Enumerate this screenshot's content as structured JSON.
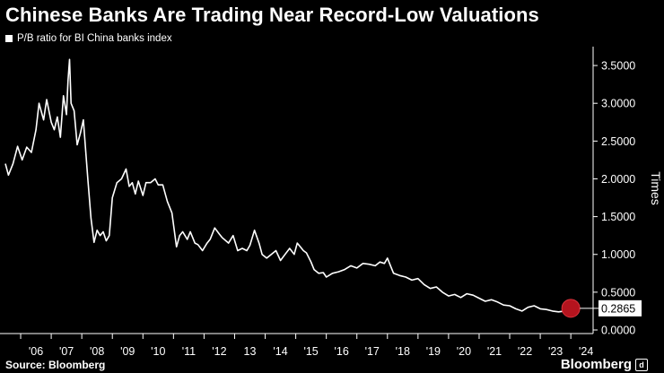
{
  "header": {
    "title": "Chinese Banks Are Trading Near Record-Low Valuations"
  },
  "footer": {
    "source": "Source: Bloomberg",
    "brand": "Bloomberg"
  },
  "colors": {
    "background": "#000000",
    "line": "#ffffff",
    "highlight": "#b4141e"
  },
  "chart_data": {
    "type": "line",
    "title": "Chinese Banks Are Trading Near Record-Low Valuations",
    "xlabel": "",
    "ylabel": "Times",
    "ylim": [
      0,
      3.75
    ],
    "y_ticks": [
      "0.0000",
      "0.5000",
      "1.0000",
      "1.5000",
      "2.0000",
      "2.5000",
      "3.0000",
      "3.5000"
    ],
    "x_ticks": [
      "'06",
      "'07",
      "'08",
      "'09",
      "'10",
      "'11",
      "'12",
      "13",
      "'14",
      "'15",
      "'16",
      "'17",
      "'18",
      "'19",
      "'20",
      "'21",
      "'22",
      "'23",
      "'24"
    ],
    "grid": false,
    "legend_position": "top-left",
    "series": [
      {
        "name": "P/B ratio for BI China banks index",
        "x": [
          2005.5,
          2005.6,
          2005.75,
          2005.9,
          2006.05,
          2006.2,
          2006.35,
          2006.5,
          2006.6,
          2006.75,
          2006.85,
          2007.0,
          2007.1,
          2007.2,
          2007.3,
          2007.4,
          2007.5,
          2007.55,
          2007.6,
          2007.65,
          2007.75,
          2007.85,
          2007.95,
          2008.05,
          2008.2,
          2008.3,
          2008.4,
          2008.5,
          2008.6,
          2008.7,
          2008.8,
          2008.9,
          2009.0,
          2009.15,
          2009.3,
          2009.45,
          2009.55,
          2009.65,
          2009.75,
          2009.85,
          2010.0,
          2010.1,
          2010.25,
          2010.4,
          2010.5,
          2010.65,
          2010.8,
          2010.95,
          2011.1,
          2011.2,
          2011.3,
          2011.45,
          2011.55,
          2011.7,
          2011.8,
          2011.95,
          2012.1,
          2012.2,
          2012.35,
          2012.5,
          2012.6,
          2012.8,
          2012.95,
          2013.1,
          2013.25,
          2013.4,
          2013.5,
          2013.65,
          2013.8,
          2013.9,
          2014.05,
          2014.2,
          2014.35,
          2014.5,
          2014.65,
          2014.8,
          2014.95,
          2015.05,
          2015.15,
          2015.25,
          2015.35,
          2015.5,
          2015.6,
          2015.75,
          2015.9,
          2016.0,
          2016.2,
          2016.4,
          2016.6,
          2016.8,
          2017.0,
          2017.2,
          2017.4,
          2017.6,
          2017.75,
          2017.9,
          2018.0,
          2018.1,
          2018.2,
          2018.4,
          2018.6,
          2018.8,
          2019.0,
          2019.2,
          2019.4,
          2019.6,
          2019.8,
          2020.0,
          2020.2,
          2020.4,
          2020.6,
          2020.8,
          2021.0,
          2021.2,
          2021.4,
          2021.6,
          2021.8,
          2022.0,
          2022.2,
          2022.4,
          2022.6,
          2022.8,
          2023.0,
          2023.2,
          2023.4,
          2023.6,
          2023.8,
          2024.0,
          2024.15
        ],
        "values": [
          2.2,
          2.05,
          2.2,
          2.43,
          2.25,
          2.42,
          2.35,
          2.65,
          3.0,
          2.78,
          3.05,
          2.75,
          2.65,
          2.82,
          2.55,
          3.1,
          2.85,
          3.3,
          3.58,
          3.0,
          2.9,
          2.45,
          2.6,
          2.78,
          1.98,
          1.48,
          1.16,
          1.32,
          1.25,
          1.3,
          1.18,
          1.25,
          1.75,
          1.95,
          2.0,
          2.13,
          1.9,
          1.95,
          1.8,
          1.97,
          1.78,
          1.95,
          1.95,
          2.0,
          1.92,
          1.92,
          1.7,
          1.55,
          1.1,
          1.25,
          1.3,
          1.2,
          1.3,
          1.15,
          1.13,
          1.05,
          1.15,
          1.2,
          1.35,
          1.27,
          1.22,
          1.15,
          1.25,
          1.05,
          1.08,
          1.05,
          1.12,
          1.32,
          1.15,
          1.0,
          0.95,
          1.0,
          1.05,
          0.92,
          1.0,
          1.08,
          1.0,
          1.15,
          1.1,
          1.05,
          1.02,
          0.9,
          0.8,
          0.75,
          0.76,
          0.7,
          0.75,
          0.77,
          0.8,
          0.85,
          0.82,
          0.88,
          0.87,
          0.85,
          0.9,
          0.88,
          0.95,
          0.85,
          0.75,
          0.72,
          0.7,
          0.66,
          0.68,
          0.6,
          0.55,
          0.57,
          0.5,
          0.45,
          0.47,
          0.43,
          0.48,
          0.46,
          0.42,
          0.38,
          0.4,
          0.37,
          0.33,
          0.32,
          0.28,
          0.25,
          0.3,
          0.32,
          0.28,
          0.27,
          0.25,
          0.24,
          0.25,
          0.2865,
          0.27
        ]
      }
    ],
    "annotations": [
      {
        "x": 2024.0,
        "y": 0.2865,
        "label": "0.2865"
      }
    ]
  }
}
